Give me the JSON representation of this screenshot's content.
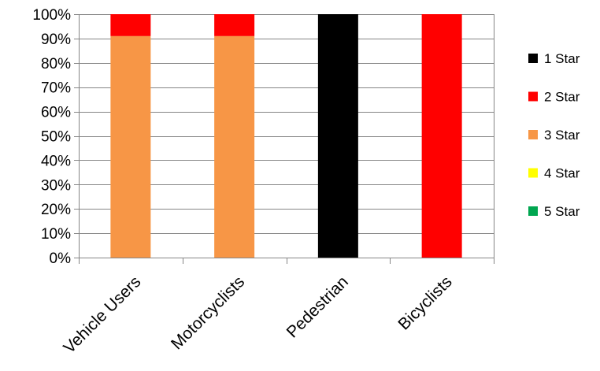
{
  "chart_data": {
    "type": "bar",
    "stacked": true,
    "normalized_percent": true,
    "categories": [
      "Vehicle Users",
      "Motorcyclists",
      "Pedestrian",
      "Bicyclists"
    ],
    "series": [
      {
        "name": "1 Star",
        "color": "#000000",
        "values": [
          0,
          0,
          100,
          0
        ]
      },
      {
        "name": "2 Star",
        "color": "#ff0000",
        "values": [
          9,
          9,
          0,
          100
        ]
      },
      {
        "name": "3 Star",
        "color": "#f79646",
        "values": [
          91,
          91,
          0,
          0
        ]
      },
      {
        "name": "4 Star",
        "color": "#ffff00",
        "values": [
          0,
          0,
          0,
          0
        ]
      },
      {
        "name": "5 Star",
        "color": "#00a650",
        "values": [
          0,
          0,
          0,
          0
        ]
      }
    ],
    "stack_order": [
      "3 Star",
      "2 Star",
      "1 Star",
      "4 Star",
      "5 Star"
    ],
    "ylim": [
      0,
      100
    ],
    "yticks": [
      "0%",
      "10%",
      "20%",
      "30%",
      "40%",
      "50%",
      "60%",
      "70%",
      "80%",
      "90%",
      "100%"
    ],
    "grid": true,
    "legend_position": "right"
  }
}
